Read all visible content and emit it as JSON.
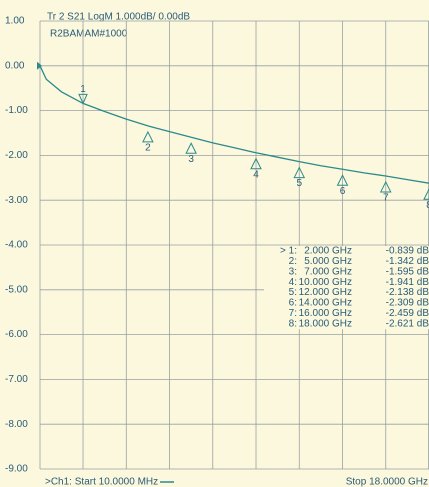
{
  "chart_data": {
    "type": "line",
    "title": "Tr 2  S21 LogM 1.000dB/  0.00dB",
    "subtitle": "R2BAMAM#1000",
    "start_label": ">Ch1: Start  10.0000 MHz",
    "stop_label": "Stop  18.0000 GHz",
    "x": [
      0.01,
      0.3,
      1,
      2,
      3,
      4,
      5,
      6,
      7,
      8,
      9,
      10,
      11,
      12,
      13,
      14,
      15,
      16,
      17,
      18
    ],
    "series": [
      {
        "name": "S21",
        "color": "#2b8a8c",
        "values": [
          0,
          -0.3,
          -0.58,
          -0.839,
          -1.02,
          -1.19,
          -1.342,
          -1.47,
          -1.595,
          -1.72,
          -1.83,
          -1.941,
          -2.04,
          -2.138,
          -2.23,
          -2.309,
          -2.39,
          -2.459,
          -2.54,
          -2.621
        ]
      }
    ],
    "xlim": [
      0.01,
      18
    ],
    "xticks": [
      2,
      4,
      6,
      8,
      10,
      12,
      14,
      16
    ],
    "ylim": [
      -9,
      1
    ],
    "yticks": [
      {
        "value": 1,
        "label": "1.00"
      },
      {
        "value": 0,
        "label": "0.00"
      },
      {
        "value": -1,
        "label": "-1.00"
      },
      {
        "value": -2,
        "label": "-2.00"
      },
      {
        "value": -3,
        "label": "-3.00"
      },
      {
        "value": -4,
        "label": "-4.00"
      },
      {
        "value": -5,
        "label": "-5.00"
      },
      {
        "value": -6,
        "label": "-6.00"
      },
      {
        "value": -7,
        "label": "-7.00"
      },
      {
        "value": -8,
        "label": "-8.00"
      },
      {
        "value": -9,
        "label": "-9.00"
      }
    ],
    "grid": true,
    "markers": [
      {
        "name": "1",
        "row_label": "> 1:",
        "x": 2,
        "x_label": "2.000 GHz",
        "value": -0.839,
        "value_label": "-0.839 dB"
      },
      {
        "name": "2",
        "row_label": "2:",
        "x": 5,
        "x_label": "5.000 GHz",
        "value": -1.342,
        "value_label": "-1.342 dB"
      },
      {
        "name": "3",
        "row_label": "3:",
        "x": 7,
        "x_label": "7.000 GHz",
        "value": -1.595,
        "value_label": "-1.595 dB"
      },
      {
        "name": "4",
        "row_label": "4:",
        "x": 10,
        "x_label": "10.000 GHz",
        "value": -1.941,
        "value_label": "-1.941 dB"
      },
      {
        "name": "5",
        "row_label": "5:",
        "x": 12,
        "x_label": "12.000 GHz",
        "value": -2.138,
        "value_label": "-2.138 dB"
      },
      {
        "name": "6",
        "row_label": "6:",
        "x": 14,
        "x_label": "14.000 GHz",
        "value": -2.309,
        "value_label": "-2.309 dB"
      },
      {
        "name": "7",
        "row_label": "7:",
        "x": 16,
        "x_label": "16.000 GHz",
        "value": -2.459,
        "value_label": "-2.459 dB"
      },
      {
        "name": "8",
        "row_label": "8:",
        "x": 18,
        "x_label": "18.000 GHz",
        "value": -2.621,
        "value_label": "-2.621 dB"
      }
    ]
  }
}
